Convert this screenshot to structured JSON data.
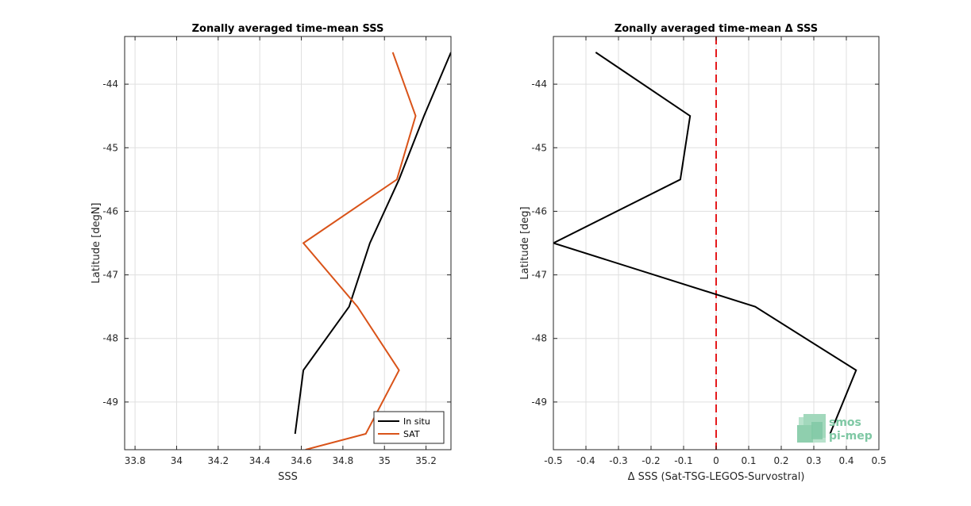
{
  "colors": {
    "insitu": "#000000",
    "sat": "#d95319",
    "zero_line": "#e41a1c",
    "logo": "#7fc8a4"
  },
  "logo": {
    "line1": "smos",
    "line2": "pi-mep",
    "icon": "smos-pi-mep-logo-icon"
  },
  "chart_data": [
    {
      "type": "line",
      "title": "Zonally averaged time-mean SSS",
      "xlabel": "SSS",
      "ylabel": "Latitude [degN]",
      "xlim": [
        33.75,
        35.32
      ],
      "ylim": [
        -49.75,
        -43.25
      ],
      "xticks": [
        33.8,
        34,
        34.2,
        34.4,
        34.6,
        34.8,
        35,
        35.2
      ],
      "xticklabels": [
        "33.8",
        "34",
        "34.2",
        "34.4",
        "34.6",
        "34.8",
        "35",
        "35.2"
      ],
      "yticks": [
        -49,
        -48,
        -47,
        -46,
        -45,
        -44
      ],
      "yticklabels": [
        "-49",
        "-48",
        "-47",
        "-46",
        "-45",
        "-44"
      ],
      "grid": true,
      "legend": "bottom-right",
      "series": [
        {
          "name": "In situ",
          "color": "#000000",
          "x": [
            34.57,
            34.61,
            34.83,
            34.93,
            35.07,
            35.19,
            35.32
          ],
          "y": [
            -49.5,
            -48.5,
            -47.5,
            -46.5,
            -45.5,
            -44.5,
            -43.5
          ]
        },
        {
          "name": "SAT",
          "color": "#d95319",
          "x": [
            34.62,
            34.91,
            35.07,
            34.87,
            34.61,
            35.06,
            35.15,
            35.04
          ],
          "y": [
            -49.75,
            -49.5,
            -48.5,
            -47.5,
            -46.5,
            -45.5,
            -44.5,
            -43.5
          ]
        }
      ]
    },
    {
      "type": "line",
      "title": "Zonally averaged time-mean Δ SSS",
      "xlabel": "Δ SSS (Sat-TSG-LEGOS-Survostral)",
      "ylabel": "Latitude [deg]",
      "xlim": [
        -0.5,
        0.5
      ],
      "ylim": [
        -49.75,
        -43.25
      ],
      "xticks": [
        -0.5,
        -0.4,
        -0.3,
        -0.2,
        -0.1,
        0,
        0.1,
        0.2,
        0.3,
        0.4,
        0.5
      ],
      "xticklabels": [
        "-0.5",
        "-0.4",
        "-0.3",
        "-0.2",
        "-0.1",
        "0",
        "0.1",
        "0.2",
        "0.3",
        "0.4",
        "0.5"
      ],
      "yticks": [
        -49,
        -48,
        -47,
        -46,
        -45,
        -44
      ],
      "yticklabels": [
        "-49",
        "-48",
        "-47",
        "-46",
        "-45",
        "-44"
      ],
      "grid": true,
      "reference_line": {
        "x": 0,
        "style": "dashed",
        "color": "#e41a1c"
      },
      "series": [
        {
          "color": "#000000",
          "x": [
            0.35,
            0.43,
            0.12,
            -0.5,
            -0.11,
            -0.08,
            -0.37
          ],
          "y": [
            -49.5,
            -48.5,
            -47.5,
            -46.5,
            -45.5,
            -44.5,
            -43.5
          ]
        }
      ]
    }
  ]
}
